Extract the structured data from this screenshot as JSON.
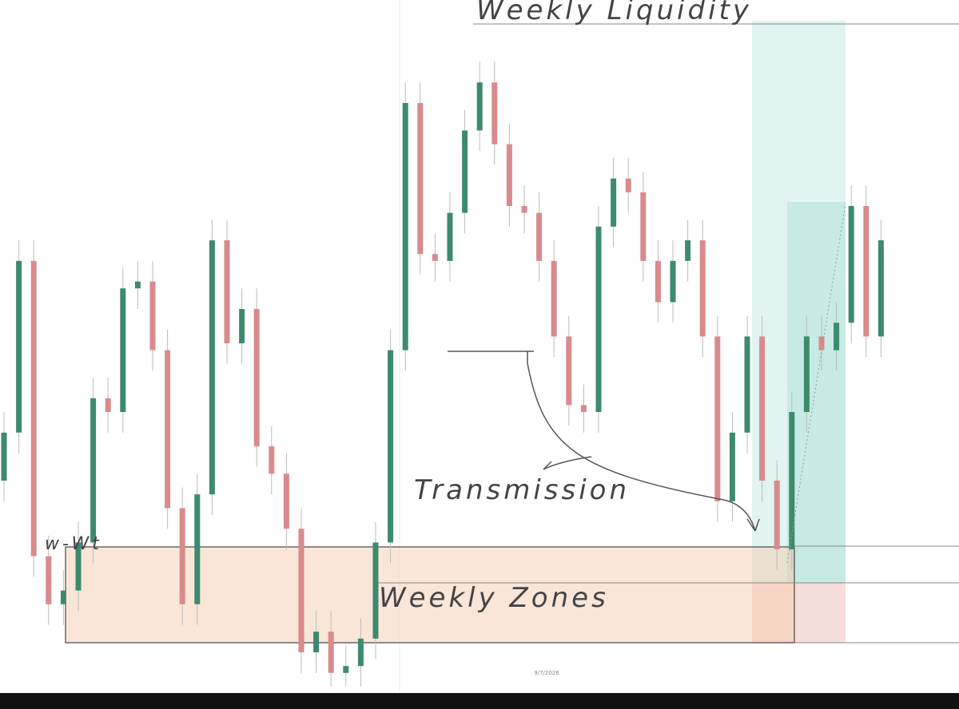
{
  "chart_data": {
    "type": "candlestick",
    "annotations": [
      "Weekly Liquidity",
      "Transmission",
      "Weekly Zones",
      "w-Wt"
    ],
    "date_label": "9/7/2026",
    "up_color": "#3d8a6e",
    "down_color": "#d98a8a",
    "ylim": [
      0,
      100
    ],
    "open": [
      30,
      37,
      62,
      19,
      12,
      14,
      21,
      42,
      40,
      58,
      59,
      49,
      26,
      12,
      28,
      65,
      50,
      55,
      35,
      31,
      23,
      5,
      8,
      2,
      3,
      7,
      21,
      49,
      85,
      63,
      62,
      69,
      81,
      88,
      79,
      70,
      69,
      62,
      51,
      41,
      40,
      67,
      74,
      72,
      62,
      56,
      62,
      65,
      51,
      27,
      37,
      51,
      30,
      20,
      40,
      51,
      49,
      53,
      70,
      51
    ],
    "high": [
      40,
      65,
      65,
      22,
      17,
      24,
      45,
      45,
      61,
      62,
      62,
      52,
      29,
      31,
      68,
      68,
      58,
      58,
      38,
      34,
      26,
      11,
      11,
      6,
      10,
      24,
      52,
      88,
      88,
      66,
      72,
      84,
      91,
      91,
      82,
      73,
      72,
      65,
      54,
      44,
      70,
      77,
      77,
      75,
      65,
      65,
      68,
      68,
      54,
      40,
      54,
      54,
      33,
      43,
      54,
      54,
      56,
      73,
      73,
      68
    ],
    "low": [
      27,
      34,
      16,
      9,
      9,
      11,
      18,
      37,
      37,
      55,
      46,
      23,
      9,
      9,
      25,
      47,
      47,
      32,
      28,
      20,
      2,
      2,
      0,
      0,
      0,
      4,
      18,
      46,
      60,
      59,
      59,
      66,
      78,
      76,
      67,
      66,
      59,
      48,
      38,
      37,
      37,
      64,
      69,
      59,
      53,
      53,
      59,
      48,
      24,
      24,
      34,
      27,
      17,
      17,
      37,
      46,
      46,
      50,
      48,
      48
    ],
    "close": [
      37,
      62,
      19,
      12,
      14,
      21,
      42,
      40,
      58,
      59,
      49,
      26,
      12,
      28,
      65,
      50,
      55,
      35,
      31,
      23,
      5,
      8,
      2,
      3,
      7,
      21,
      49,
      85,
      63,
      62,
      69,
      81,
      88,
      79,
      70,
      69,
      62,
      51,
      41,
      40,
      67,
      74,
      72,
      62,
      56,
      62,
      65,
      51,
      27,
      37,
      51,
      30,
      20,
      40,
      51,
      49,
      53,
      70,
      51,
      65
    ]
  }
}
